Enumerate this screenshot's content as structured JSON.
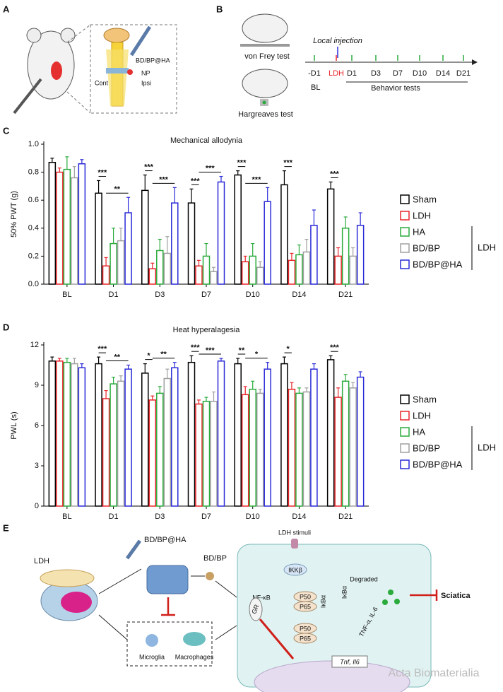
{
  "figure": {
    "panel_labels": [
      "A",
      "B",
      "C",
      "D",
      "E"
    ],
    "A": {
      "texts": [
        "BD/BP@HA",
        "NP",
        "Cont",
        "Ipsi"
      ]
    },
    "B": {
      "von_frey": "von Frey test",
      "hargreaves": "Hargreaves test",
      "injection": "Local injection",
      "timeline": [
        "-D1",
        "LDH",
        "D1",
        "D3",
        "D7",
        "D10",
        "D14",
        "D21"
      ],
      "baseline": "BL",
      "behavior": "Behavior tests"
    },
    "E": {
      "ldh": "LDH",
      "hydrogel": "BD/BP@HA",
      "drug": "BD/BP",
      "stimuli": "LDH stimuli",
      "ikk": "IKKβ",
      "degraded": "Degraded",
      "nfkb": "NF-κB",
      "p50a": "P50",
      "p65a": "P65",
      "ikba1": "IκBα",
      "ikba2": "IκBα",
      "p50b": "P50",
      "p65b": "P65",
      "gr": "GR",
      "cytokines": "TNF-α, IL-6",
      "genes": "Tnf, Il6",
      "microglia": "Microglia",
      "macrophages": "Macrophages",
      "sciatica": "Sciatica"
    },
    "watermark": "Acta Biomaterialia"
  },
  "chart_data": [
    {
      "type": "bar",
      "title": "Mechanical allodynia",
      "ylabel": "50% PWT (g)",
      "categories": [
        "BL",
        "D1",
        "D3",
        "D7",
        "D10",
        "D14",
        "D21"
      ],
      "ylim": [
        0,
        1.0
      ],
      "yticks": [
        {
          "value": 0,
          "label": "0.0"
        },
        0.2,
        0.4,
        0.6,
        0.8,
        {
          "value": 1.0,
          "label": "1.0"
        }
      ],
      "series": [
        {
          "name": "Sham",
          "color": "#000000",
          "values": [
            0.87,
            0.65,
            0.67,
            0.58,
            0.78,
            0.71,
            0.68
          ],
          "errors": [
            0.03,
            0.09,
            0.11,
            0.1,
            0.03,
            0.1,
            0.05
          ]
        },
        {
          "name": "LDH",
          "color": "#e8262a",
          "values": [
            0.8,
            0.13,
            0.11,
            0.13,
            0.16,
            0.17,
            0.2
          ],
          "errors": [
            0.03,
            0.06,
            0.04,
            0.04,
            0.04,
            0.05,
            0.06
          ]
        },
        {
          "name": "HA",
          "color": "#2aab3c",
          "values": [
            0.82,
            0.29,
            0.24,
            0.2,
            0.2,
            0.21,
            0.4
          ],
          "errors": [
            0.09,
            0.11,
            0.08,
            0.09,
            0.09,
            0.07,
            0.08
          ]
        },
        {
          "name": "BD/BP",
          "color": "#a0a0a0",
          "values": [
            0.76,
            0.31,
            0.22,
            0.09,
            0.12,
            0.23,
            0.2
          ],
          "errors": [
            0.08,
            0.09,
            0.12,
            0.03,
            0.04,
            0.09,
            0.06
          ]
        },
        {
          "name": "BD/BP@HA",
          "color": "#2a2ad8",
          "values": [
            0.86,
            0.51,
            0.58,
            0.73,
            0.59,
            0.42,
            0.42
          ],
          "errors": [
            0.03,
            0.11,
            0.11,
            0.04,
            0.1,
            0.11,
            0.09
          ]
        }
      ],
      "legend_group_label": "LDH",
      "annotations": [
        {
          "category": 1,
          "series": [
            0,
            1
          ],
          "text": "***"
        },
        {
          "category": 1,
          "series": [
            1,
            4
          ],
          "text": "**"
        },
        {
          "category": 2,
          "series": [
            0,
            1
          ],
          "text": "***"
        },
        {
          "category": 2,
          "series": [
            1,
            4
          ],
          "text": "***"
        },
        {
          "category": 3,
          "series": [
            0,
            1
          ],
          "text": "***"
        },
        {
          "category": 3,
          "series": [
            1,
            4
          ],
          "text": "***"
        },
        {
          "category": 4,
          "series": [
            0,
            1
          ],
          "text": "***"
        },
        {
          "category": 4,
          "series": [
            1,
            4
          ],
          "text": "***"
        },
        {
          "category": 5,
          "series": [
            0,
            1
          ],
          "text": "***"
        },
        {
          "category": 6,
          "series": [
            0,
            1
          ],
          "text": "***"
        }
      ]
    },
    {
      "type": "bar",
      "title": "Heat hyperalagesia",
      "ylabel": "PWL (s)",
      "categories": [
        "BL",
        "D1",
        "D3",
        "D7",
        "D10",
        "D14",
        "D21"
      ],
      "ylim": [
        0,
        12
      ],
      "yticks": [
        0,
        3,
        6,
        9,
        12
      ],
      "series": [
        {
          "name": "Sham",
          "color": "#000000",
          "values": [
            10.8,
            10.6,
            9.9,
            10.7,
            10.6,
            10.6,
            10.9
          ],
          "errors": [
            0.3,
            0.5,
            0.7,
            0.5,
            0.4,
            0.5,
            0.3
          ]
        },
        {
          "name": "LDH",
          "color": "#e8262a",
          "values": [
            10.8,
            8.0,
            7.9,
            7.6,
            8.3,
            8.7,
            8.1
          ],
          "errors": [
            0.2,
            0.6,
            0.3,
            0.3,
            0.6,
            0.5,
            0.7
          ]
        },
        {
          "name": "HA",
          "color": "#2aab3c",
          "values": [
            10.7,
            9.1,
            8.4,
            7.8,
            8.7,
            8.4,
            9.3
          ],
          "errors": [
            0.3,
            0.5,
            0.5,
            0.3,
            0.6,
            0.4,
            0.5
          ]
        },
        {
          "name": "BD/BP",
          "color": "#a0a0a0",
          "values": [
            10.6,
            9.3,
            9.5,
            7.8,
            8.4,
            8.5,
            8.8
          ],
          "errors": [
            0.4,
            0.4,
            0.7,
            0.7,
            0.3,
            0.3,
            0.4
          ]
        },
        {
          "name": "BD/BP@HA",
          "color": "#2a2ad8",
          "values": [
            10.3,
            10.2,
            10.3,
            10.8,
            10.2,
            10.2,
            9.6
          ],
          "errors": [
            0.3,
            0.3,
            0.4,
            0.2,
            0.5,
            0.4,
            0.4
          ]
        }
      ],
      "legend_group_label": "LDH",
      "annotations": [
        {
          "category": 1,
          "series": [
            0,
            1
          ],
          "text": "***"
        },
        {
          "category": 1,
          "series": [
            1,
            4
          ],
          "text": "**"
        },
        {
          "category": 2,
          "series": [
            0,
            1
          ],
          "text": "*"
        },
        {
          "category": 2,
          "series": [
            1,
            4
          ],
          "text": "**"
        },
        {
          "category": 3,
          "series": [
            0,
            1
          ],
          "text": "***"
        },
        {
          "category": 3,
          "series": [
            1,
            4
          ],
          "text": "***"
        },
        {
          "category": 4,
          "series": [
            0,
            1
          ],
          "text": "**"
        },
        {
          "category": 4,
          "series": [
            1,
            4
          ],
          "text": "*"
        },
        {
          "category": 5,
          "series": [
            0,
            1
          ],
          "text": "*"
        },
        {
          "category": 6,
          "series": [
            0,
            1
          ],
          "text": "***"
        }
      ]
    }
  ]
}
